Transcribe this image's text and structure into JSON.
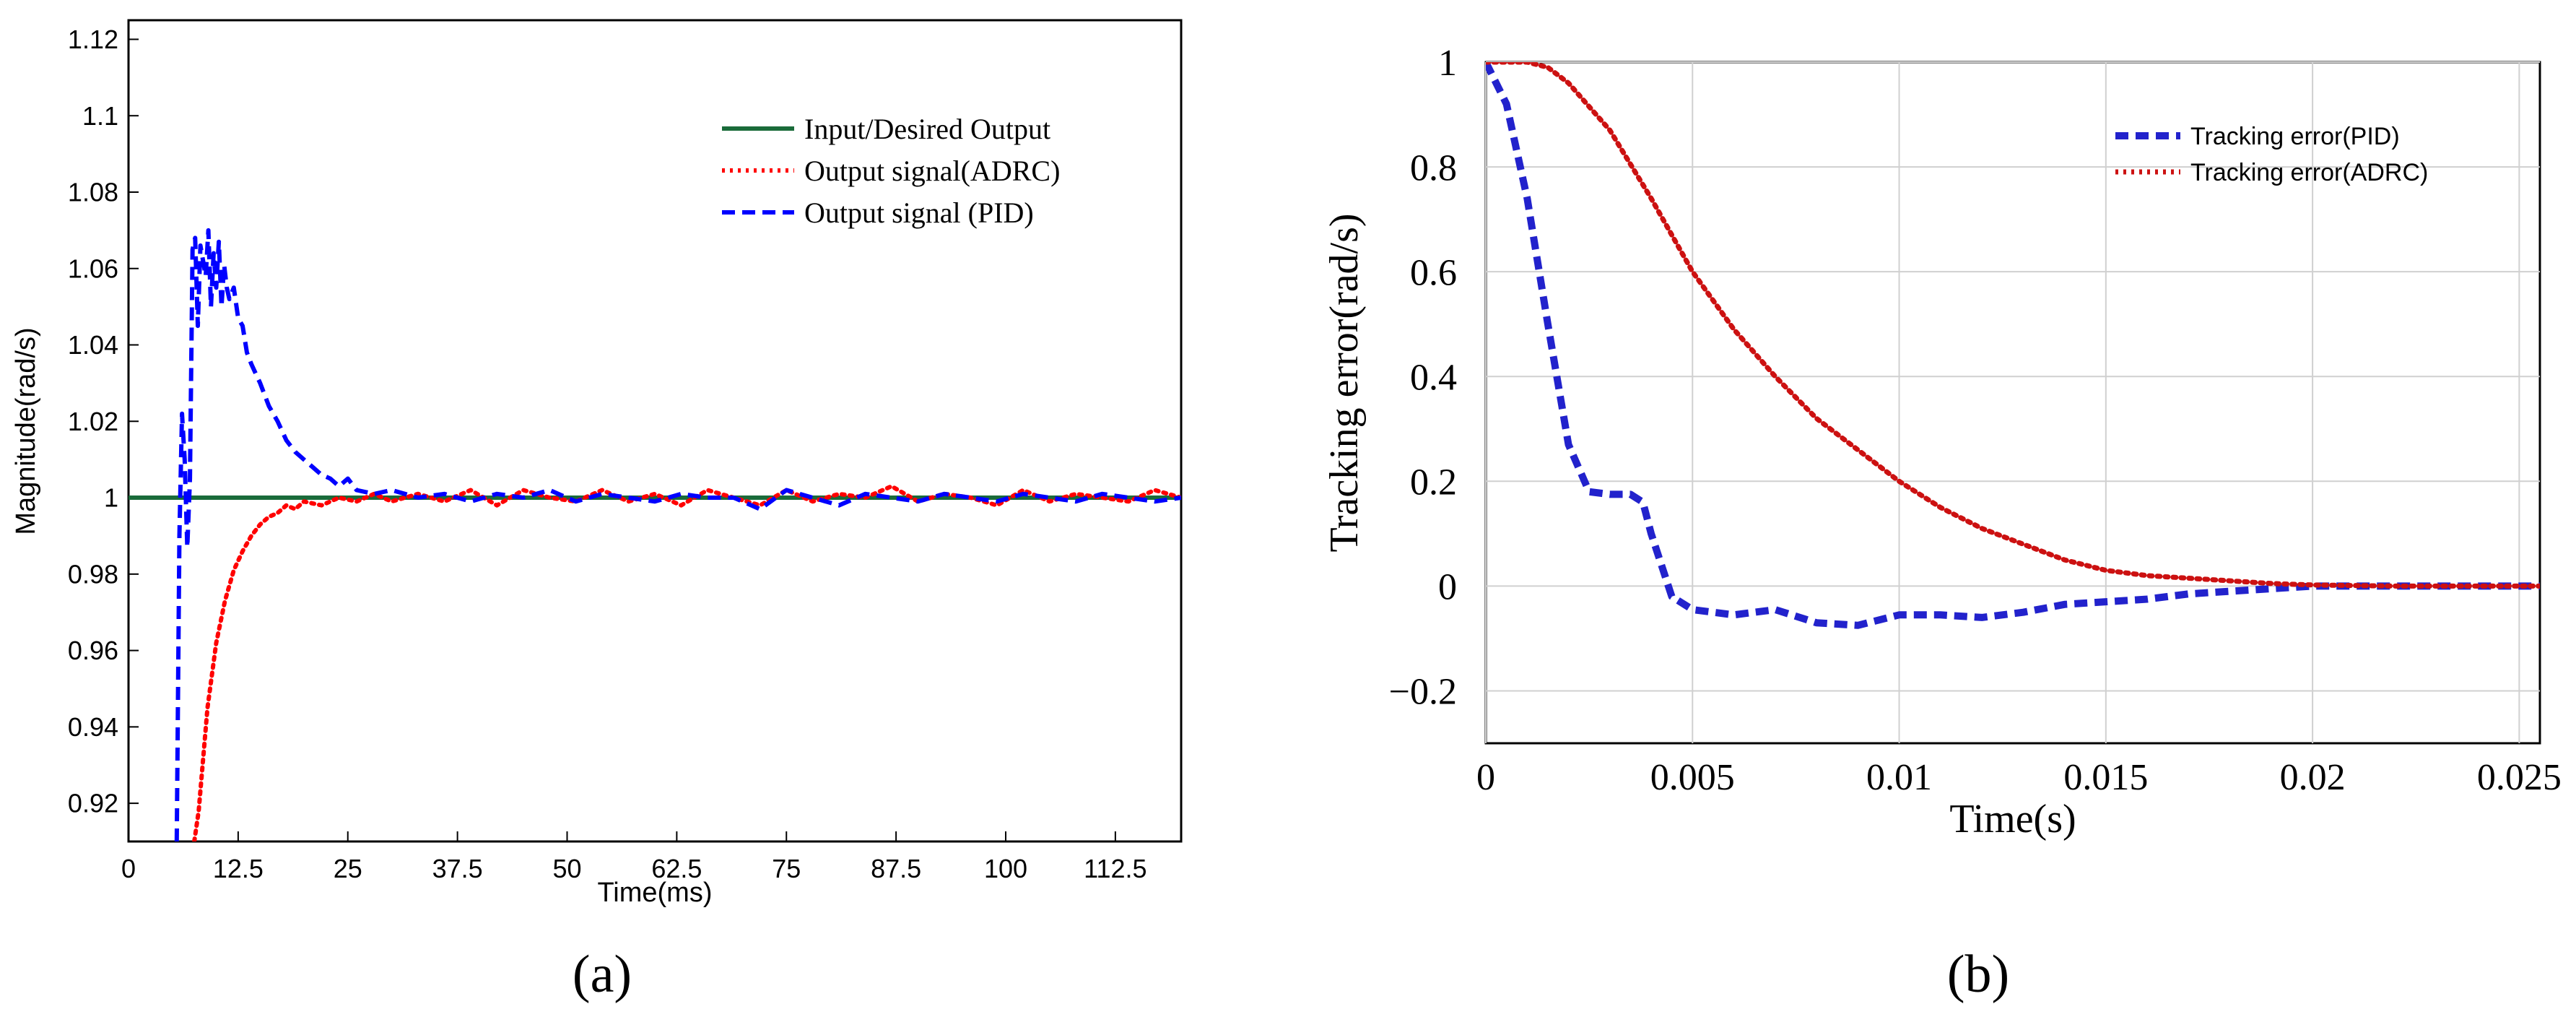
{
  "chart_data": [
    {
      "panel": "a",
      "type": "line",
      "panel_label": "(a)",
      "xlabel": "Time(ms)",
      "ylabel": "Magnitude(rad/s)",
      "xlim": [
        0,
        120
      ],
      "ylim": [
        0.91,
        1.125
      ],
      "grid": false,
      "legend_position": "top-right",
      "xticks": [
        0,
        12.5,
        25,
        37.5,
        50,
        62.5,
        75,
        87.5,
        100,
        112.5
      ],
      "xtick_labels": [
        "0",
        "12.5",
        "25",
        "37.5",
        "50",
        "62.5",
        "75",
        "87.5",
        "100",
        "112.5"
      ],
      "yticks": [
        0.92,
        0.94,
        0.96,
        0.98,
        1.0,
        1.02,
        1.04,
        1.06,
        1.08,
        1.1,
        1.12
      ],
      "ytick_labels": [
        "0.92",
        "0.94",
        "0.96",
        "0.98",
        "1",
        "1.02",
        "1.04",
        "1.06",
        "1.08",
        "1.1",
        "1.12"
      ],
      "series": [
        {
          "name": "Input/Desired Output",
          "color": "#1a6b3a",
          "dash": "solid",
          "x": [
            0,
            120
          ],
          "y": [
            1.0,
            1.0
          ]
        },
        {
          "name": "Output signal(ADRC)",
          "color": "#ff0000",
          "dash": "dotted",
          "x": [
            7.5,
            8.0,
            9.0,
            10.0,
            11.0,
            12.0,
            13.0,
            14.0,
            15.0,
            16.0,
            17.0,
            18.0,
            19.0,
            20.0,
            22.0,
            24.0,
            26.0,
            28.0,
            30.0,
            33.0,
            36.0,
            39.0,
            42.0,
            45.0,
            48.0,
            51.0,
            54.0,
            57.0,
            60.0,
            63.0,
            66.0,
            69.0,
            72.0,
            75.0,
            78.0,
            81.0,
            84.0,
            87.0,
            90.0,
            93.0,
            96.0,
            99.0,
            102.0,
            105.0,
            108.0,
            111.0,
            114.0,
            117.0,
            120.0
          ],
          "y": [
            0.91,
            0.918,
            0.945,
            0.962,
            0.973,
            0.981,
            0.986,
            0.99,
            0.993,
            0.995,
            0.996,
            0.998,
            0.997,
            0.999,
            0.998,
            1.0,
            0.999,
            1.001,
            0.999,
            1.001,
            0.999,
            1.002,
            0.998,
            1.002,
            1.0,
            0.999,
            1.002,
            0.999,
            1.001,
            0.998,
            1.002,
            1.0,
            0.998,
            1.002,
            0.999,
            1.001,
            1.0,
            1.003,
            0.999,
            1.001,
            1.0,
            0.998,
            1.002,
            0.999,
            1.001,
            1.0,
            0.999,
            1.002,
            1.0
          ]
        },
        {
          "name": "Output signal (PID)",
          "color": "#0000ff",
          "dash": "dashed",
          "x": [
            5.5,
            5.8,
            6.1,
            6.4,
            6.7,
            7.0,
            7.3,
            7.6,
            7.9,
            8.2,
            8.5,
            8.8,
            9.1,
            9.4,
            9.7,
            10.0,
            10.3,
            10.6,
            10.9,
            11.2,
            11.5,
            12.0,
            12.5,
            13.0,
            13.5,
            14.0,
            15.0,
            16.0,
            17.0,
            18.0,
            19.0,
            20.0,
            21.0,
            22.0,
            23.0,
            24.0,
            25.0,
            26.0,
            28.0,
            30.0,
            33.0,
            36.0,
            39.0,
            42.0,
            45.0,
            48.0,
            51.0,
            54.0,
            57.0,
            60.0,
            63.0,
            66.0,
            69.0,
            72.0,
            75.0,
            78.0,
            81.0,
            84.0,
            87.0,
            90.0,
            93.0,
            96.0,
            99.0,
            102.0,
            105.0,
            108.0,
            111.0,
            114.0,
            117.0,
            120.0
          ],
          "y": [
            0.91,
            0.99,
            1.022,
            1.01,
            0.987,
            1.005,
            1.065,
            1.068,
            1.045,
            1.066,
            1.062,
            1.058,
            1.07,
            1.05,
            1.064,
            1.055,
            1.067,
            1.05,
            1.061,
            1.055,
            1.052,
            1.055,
            1.047,
            1.045,
            1.038,
            1.035,
            1.03,
            1.024,
            1.02,
            1.015,
            1.012,
            1.01,
            1.008,
            1.006,
            1.005,
            1.003,
            1.005,
            1.002,
            1.001,
            1.002,
            1.0,
            1.001,
            0.999,
            1.001,
            1.0,
            1.002,
            0.999,
            1.001,
            1.0,
            0.999,
            1.001,
            1.0,
            1.0,
            0.997,
            1.002,
            1.0,
            0.998,
            1.001,
            1.0,
            0.999,
            1.001,
            1.0,
            0.999,
            1.001,
            1.0,
            0.999,
            1.001,
            1.0,
            0.999,
            1.0
          ]
        }
      ]
    },
    {
      "panel": "b",
      "type": "line",
      "panel_label": "(b)",
      "xlabel": "Time(s)",
      "ylabel": "Tracking error(rad/s)",
      "xlim": [
        0,
        0.0255
      ],
      "ylim": [
        -0.3,
        1.0
      ],
      "grid": true,
      "legend_position": "top-right",
      "xticks": [
        0,
        0.005,
        0.01,
        0.015,
        0.02,
        0.025
      ],
      "xtick_labels": [
        "0",
        "0.005",
        "0.01",
        "0.015",
        "0.02",
        "0.025"
      ],
      "yticks": [
        -0.2,
        0,
        0.2,
        0.4,
        0.6,
        0.8,
        1.0
      ],
      "ytick_labels": [
        "−0.2",
        "0",
        "0.2",
        "0.4",
        "0.6",
        "0.8",
        "1"
      ],
      "series": [
        {
          "name": "Tracking error(PID)",
          "color": "#2222cc",
          "dash": "dashed",
          "x": [
            0,
            0.0005,
            0.001,
            0.0015,
            0.002,
            0.0025,
            0.003,
            0.0035,
            0.0038,
            0.004,
            0.0045,
            0.005,
            0.006,
            0.007,
            0.008,
            0.009,
            0.01,
            0.011,
            0.012,
            0.013,
            0.014,
            0.015,
            0.016,
            0.017,
            0.018,
            0.019,
            0.02,
            0.022,
            0.024,
            0.0255
          ],
          "y": [
            1.0,
            0.92,
            0.74,
            0.5,
            0.27,
            0.18,
            0.175,
            0.175,
            0.16,
            0.1,
            -0.02,
            -0.045,
            -0.055,
            -0.045,
            -0.07,
            -0.075,
            -0.055,
            -0.055,
            -0.06,
            -0.05,
            -0.035,
            -0.03,
            -0.025,
            -0.015,
            -0.01,
            -0.005,
            0.0,
            0.0,
            0.0,
            0.0
          ]
        },
        {
          "name": "Tracking error(ADRC)",
          "color": "#cc1111",
          "dash": "dotted",
          "x": [
            0,
            0.0005,
            0.001,
            0.0015,
            0.002,
            0.003,
            0.004,
            0.005,
            0.006,
            0.007,
            0.008,
            0.009,
            0.01,
            0.011,
            0.012,
            0.013,
            0.014,
            0.015,
            0.016,
            0.017,
            0.018,
            0.019,
            0.02,
            0.022,
            0.024,
            0.0255
          ],
          "y": [
            1.0,
            1.0,
            1.0,
            0.99,
            0.96,
            0.87,
            0.74,
            0.6,
            0.49,
            0.4,
            0.32,
            0.26,
            0.2,
            0.15,
            0.11,
            0.08,
            0.05,
            0.03,
            0.02,
            0.015,
            0.01,
            0.005,
            0.002,
            0.0,
            0.0,
            0.0
          ]
        }
      ]
    }
  ]
}
